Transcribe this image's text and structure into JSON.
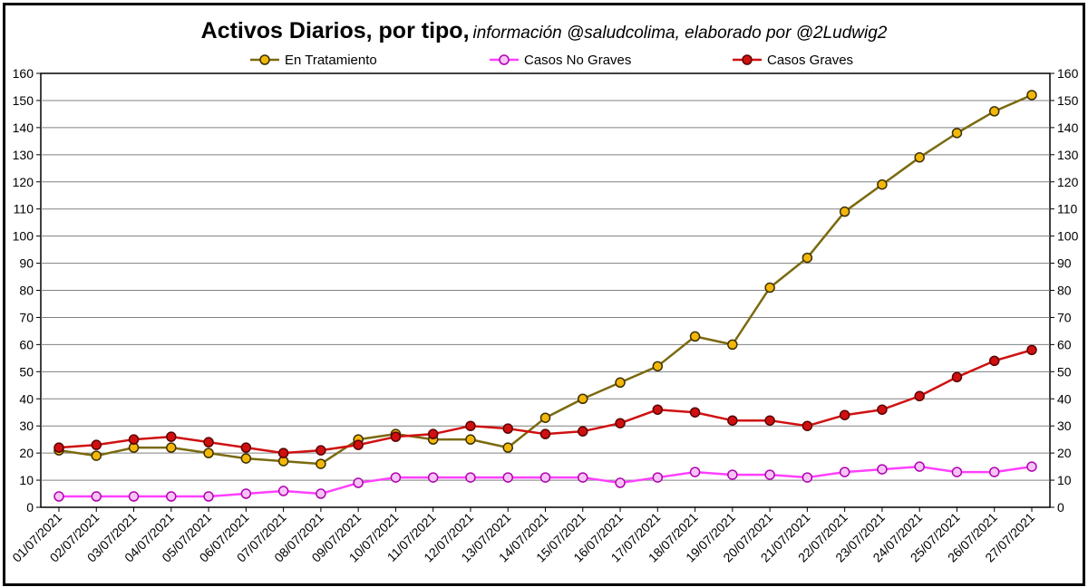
{
  "chart_data": {
    "type": "line",
    "title": "Activos Diarios, por tipo,",
    "subtitle": "información @saludcolima, elaborado por @2Ludwig2",
    "xlabel": "",
    "ylabel": "",
    "ylim": [
      0,
      160
    ],
    "y_ticks": [
      0,
      10,
      20,
      30,
      40,
      50,
      60,
      70,
      80,
      90,
      100,
      110,
      120,
      130,
      140,
      150,
      160
    ],
    "grid": "horizontal",
    "legend_position": "top",
    "secondary_y_axis_mirror": true,
    "categories": [
      "01/07/2021",
      "02/07/2021",
      "03/07/2021",
      "04/07/2021",
      "05/07/2021",
      "06/07/2021",
      "07/07/2021",
      "08/07/2021",
      "09/07/2021",
      "10/07/2021",
      "11/07/2021",
      "12/07/2021",
      "13/07/2021",
      "14/07/2021",
      "15/07/2021",
      "16/07/2021",
      "17/07/2021",
      "18/07/2021",
      "19/07/2021",
      "20/07/2021",
      "21/07/2021",
      "22/07/2021",
      "23/07/2021",
      "24/07/2021",
      "25/07/2021",
      "26/07/2021",
      "27/07/2021"
    ],
    "series": [
      {
        "name": "En Tratamiento",
        "line_color": "#7a6a10",
        "marker_color": "#f2b70a",
        "marker_edge": "#3b3000",
        "values": [
          21,
          19,
          22,
          22,
          20,
          18,
          17,
          16,
          25,
          27,
          25,
          25,
          22,
          33,
          40,
          46,
          52,
          63,
          60,
          81,
          92,
          109,
          119,
          129,
          138,
          146,
          152
        ]
      },
      {
        "name": "Casos No Graves",
        "line_color": "#ff40ff",
        "marker_color": "#f8c4f8",
        "marker_edge": "#b000b0",
        "values": [
          4,
          4,
          4,
          4,
          4,
          5,
          6,
          5,
          9,
          11,
          11,
          11,
          11,
          11,
          11,
          9,
          11,
          13,
          12,
          12,
          11,
          13,
          14,
          15,
          13,
          13,
          15
        ]
      },
      {
        "name": "Casos Graves",
        "line_color": "#d01010",
        "marker_color": "#d01010",
        "marker_edge": "#5a0000",
        "values": [
          22,
          23,
          25,
          26,
          24,
          22,
          20,
          21,
          23,
          26,
          27,
          30,
          29,
          27,
          28,
          31,
          36,
          35,
          32,
          32,
          30,
          34,
          36,
          41,
          48,
          54,
          58
        ]
      }
    ]
  }
}
